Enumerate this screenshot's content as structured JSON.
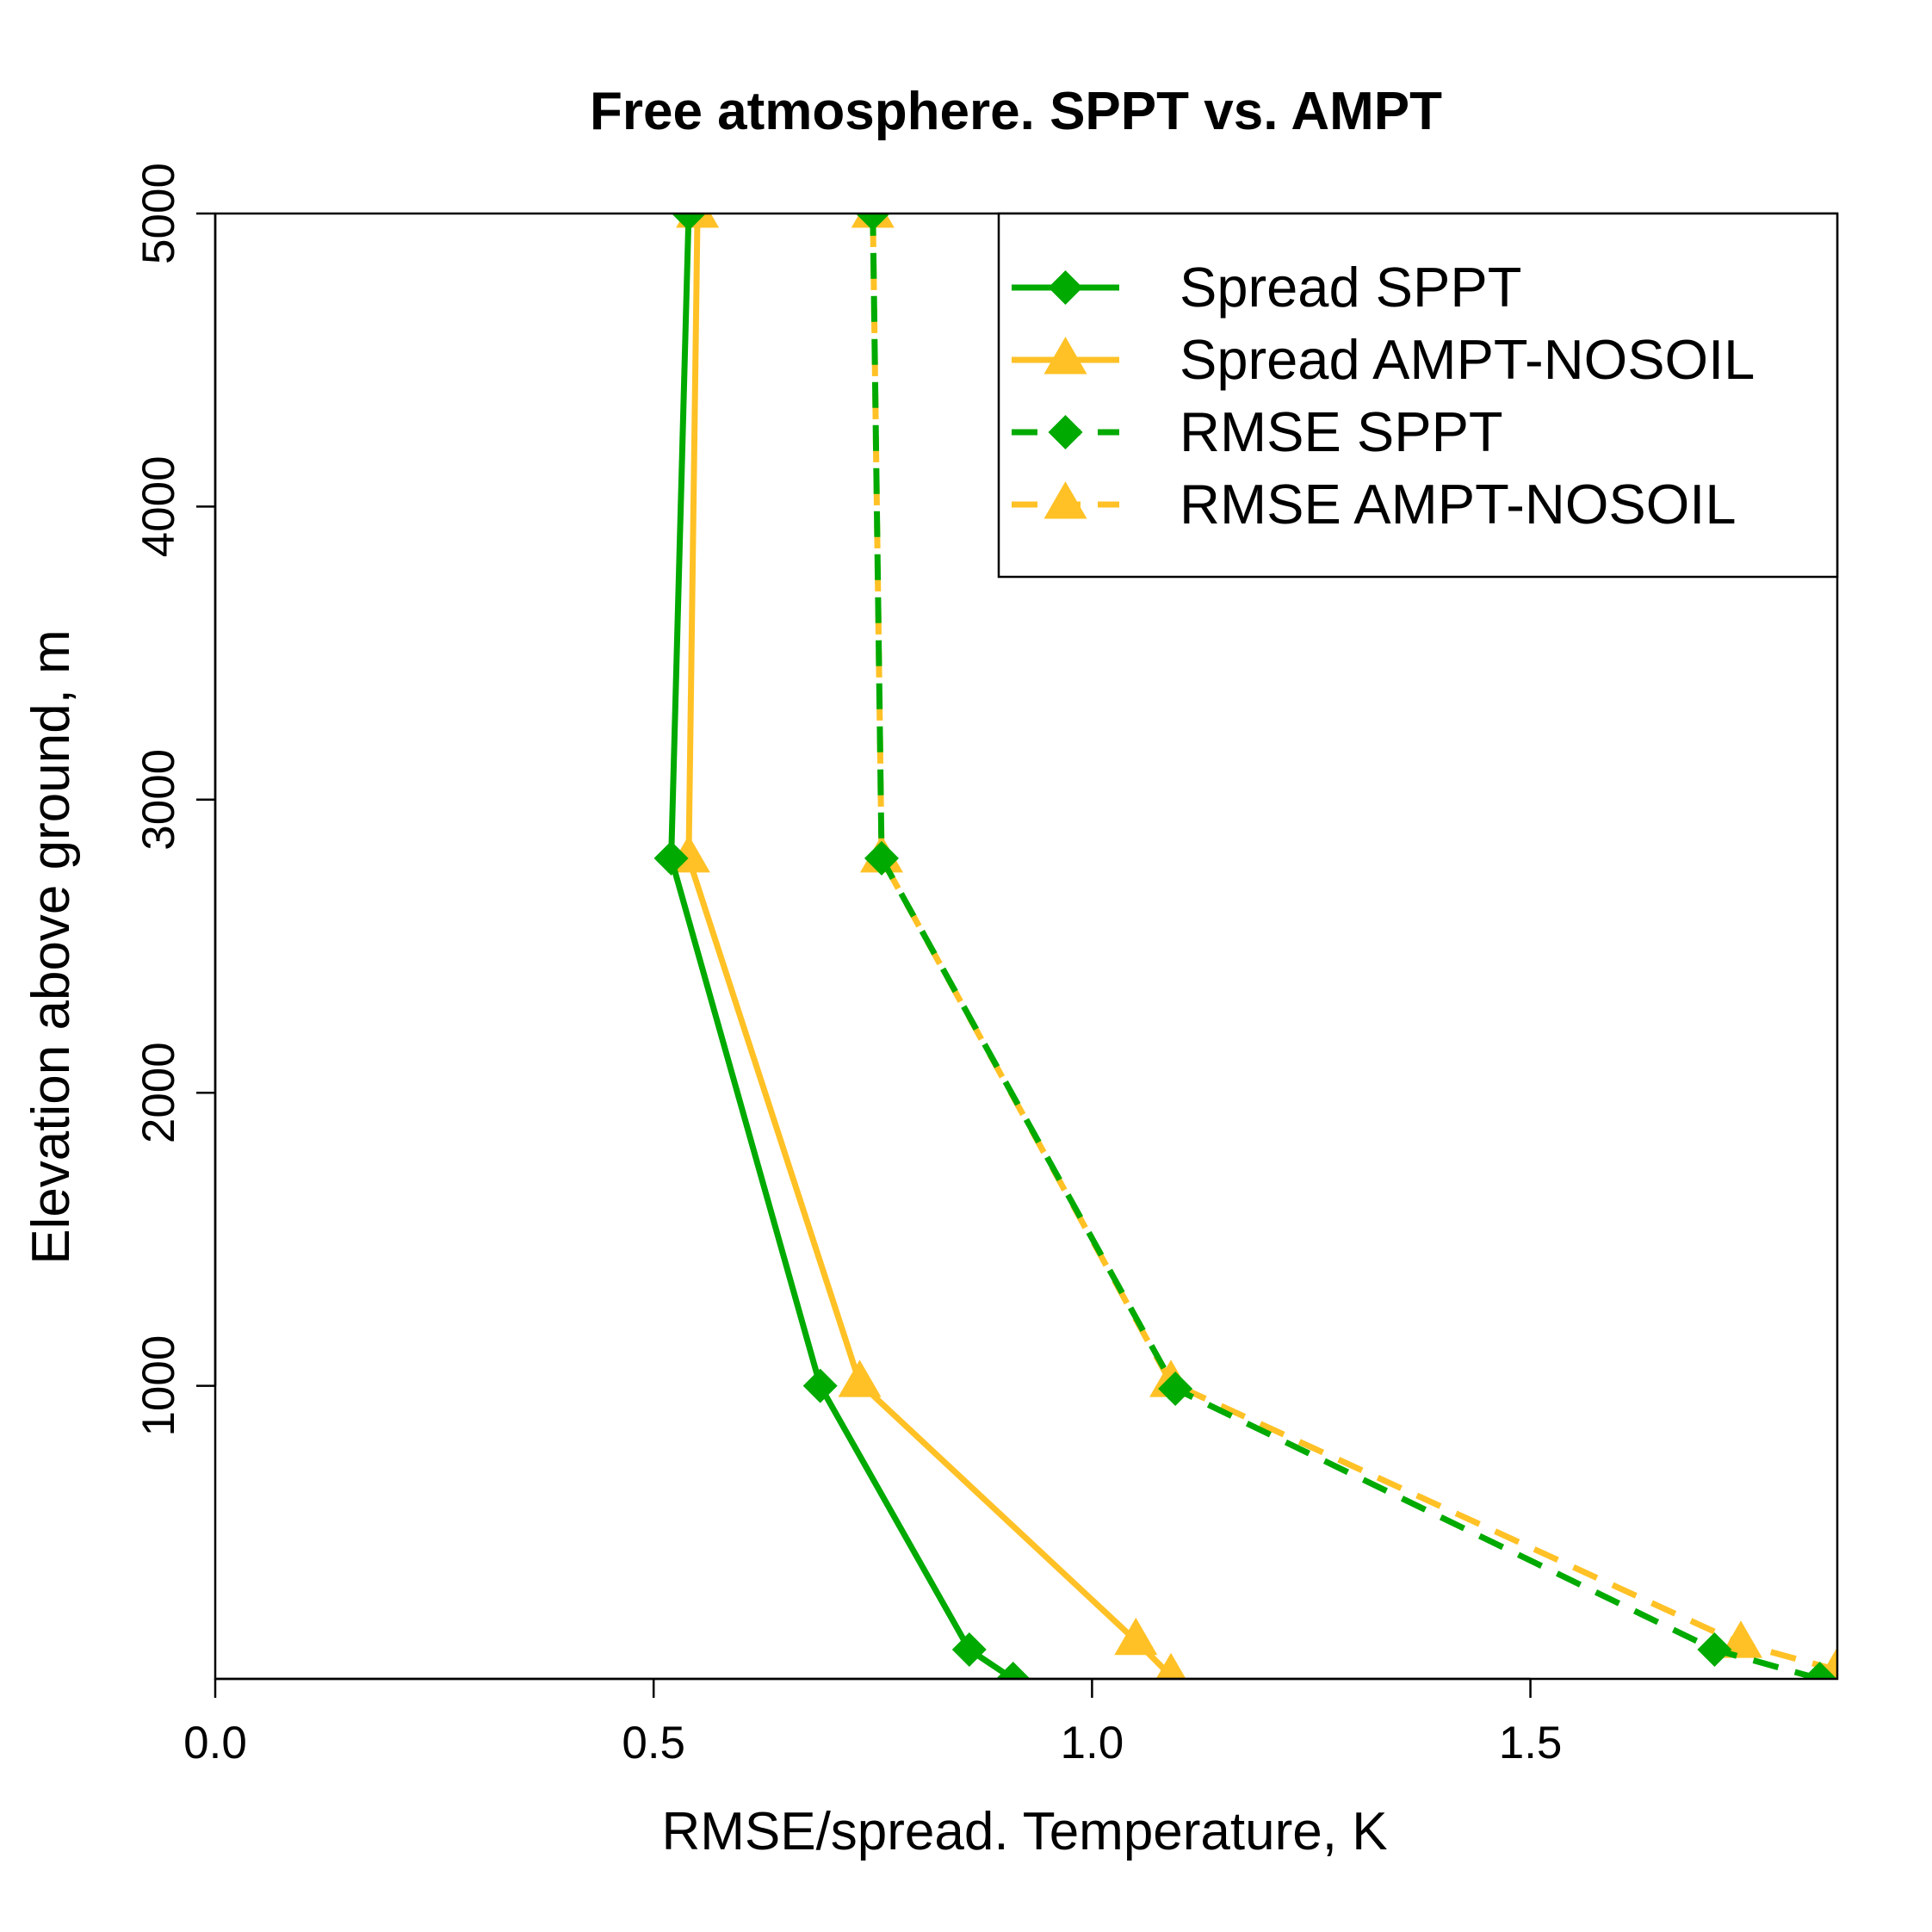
{
  "chart_data": {
    "type": "line",
    "title": "Free atmosphere. SPPT vs. AMPT",
    "xlabel": "RMSE/spread. Temperature, K",
    "ylabel": "Elevation above ground, m",
    "xlim": [
      0,
      1.85
    ],
    "ylim": [
      0,
      5000
    ],
    "x_ticks": [
      "0.0",
      "0.5",
      "1.0",
      "1.5"
    ],
    "y_ticks": [
      "1000",
      "2000",
      "3000",
      "4000",
      "5000"
    ],
    "grid": false,
    "legend_position": "top-right",
    "series": [
      {
        "name": "Spread SPPT",
        "color": "#00AA00",
        "line_style": "solid",
        "marker": "diamond",
        "points": [
          [
            0.91,
            0
          ],
          [
            0.86,
            100
          ],
          [
            0.69,
            1000
          ],
          [
            0.52,
            2800
          ],
          [
            0.54,
            5000
          ]
        ]
      },
      {
        "name": "Spread AMPT-NOSOIL",
        "color": "#FFC125",
        "line_style": "solid",
        "marker": "triangle",
        "points": [
          [
            1.09,
            10
          ],
          [
            1.05,
            130
          ],
          [
            0.735,
            1010
          ],
          [
            0.54,
            2800
          ],
          [
            0.55,
            5000
          ]
        ]
      },
      {
        "name": "RMSE SPPT",
        "color": "#00AA00",
        "line_style": "dashed",
        "marker": "diamond",
        "points": [
          [
            1.83,
            0
          ],
          [
            1.71,
            100
          ],
          [
            1.095,
            990
          ],
          [
            0.76,
            2800
          ],
          [
            0.75,
            5000
          ]
        ]
      },
      {
        "name": "RMSE AMPT-NOSOIL",
        "color": "#FFC125",
        "line_style": "dashed",
        "marker": "triangle",
        "points": [
          [
            1.85,
            30
          ],
          [
            1.74,
            120
          ],
          [
            1.09,
            1010
          ],
          [
            0.76,
            2800
          ],
          [
            0.75,
            5000
          ]
        ]
      }
    ]
  }
}
